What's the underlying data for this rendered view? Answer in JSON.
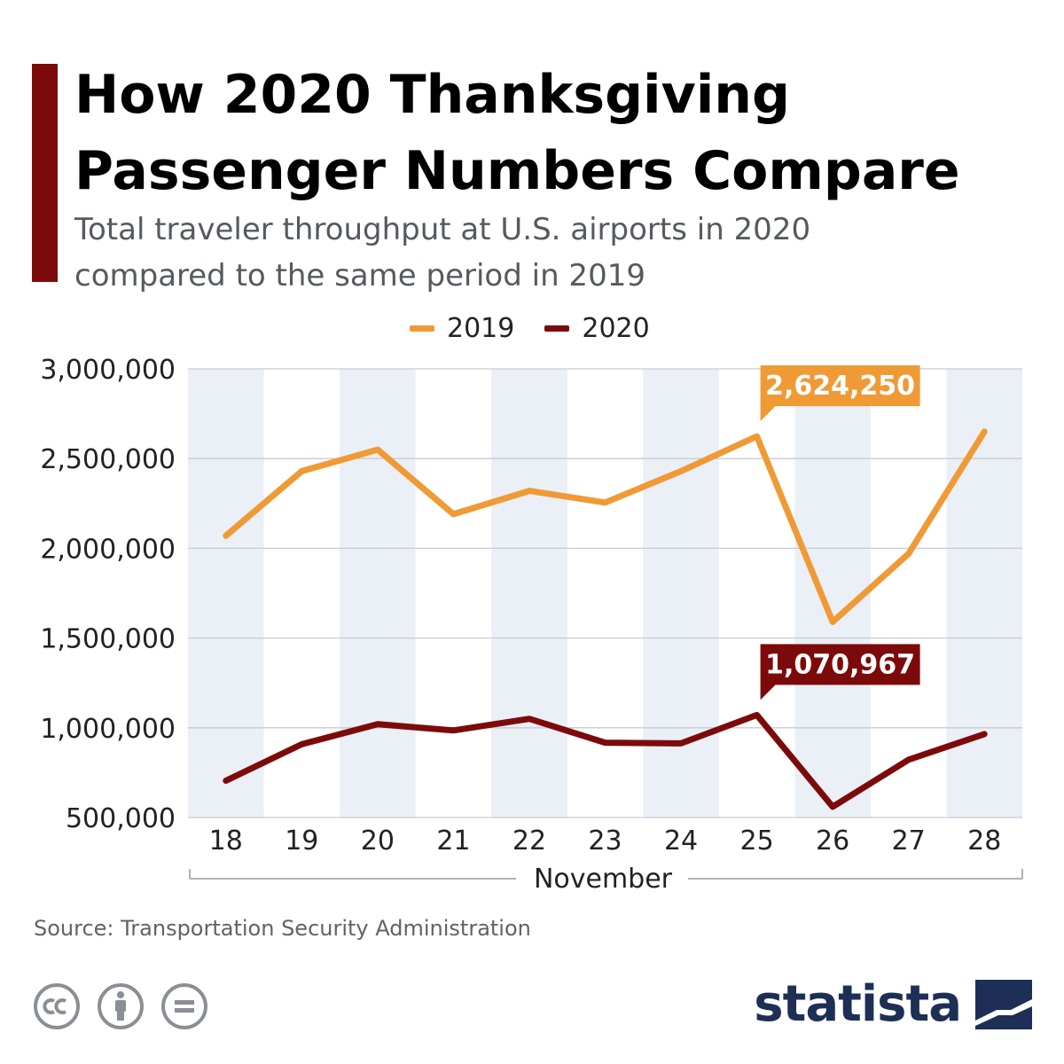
{
  "header": {
    "title": "How 2020 Thanksgiving Passenger Numbers Compare",
    "subtitle": "Total traveler throughput at U.S. airports in 2020 compared to the same period in 2019"
  },
  "colors": {
    "accent": "#7d0a0a",
    "series_2019": "#f09a36",
    "series_2020": "#7d0a0a",
    "band": "#ebeff6",
    "grid": "#c9ccd1",
    "brand": "#1d2f55"
  },
  "chart_data": {
    "type": "line",
    "title": "How 2020 Thanksgiving Passenger Numbers Compare",
    "subtitle": "Total traveler throughput at U.S. airports in 2020 compared to the same period in 2019",
    "xlabel": "November",
    "ylabel": "",
    "categories": [
      "18",
      "19",
      "20",
      "21",
      "22",
      "23",
      "24",
      "25",
      "26",
      "27",
      "28"
    ],
    "yticks": [
      "3,000,000",
      "2,500,000",
      "2,000,000",
      "1,500,000",
      "1,000,000",
      "500,000"
    ],
    "ytick_values": [
      3000000,
      2500000,
      2000000,
      1500000,
      1000000,
      500000
    ],
    "ylim": [
      500000,
      3000000
    ],
    "grid": true,
    "legend": "top-center",
    "series": [
      {
        "name": "2019",
        "color": "#f09a36",
        "values": [
          2070000,
          2430000,
          2550000,
          2190000,
          2320000,
          2255000,
          2430000,
          2624250,
          1590000,
          1970000,
          2650000
        ],
        "annotation": {
          "index": 7,
          "label": "2,624,250"
        }
      },
      {
        "name": "2020",
        "color": "#7d0a0a",
        "values": [
          705000,
          908000,
          1020000,
          985000,
          1050000,
          917000,
          913000,
          1070967,
          560000,
          822000,
          965000
        ],
        "annotation": {
          "index": 7,
          "label": "1,070,967"
        }
      }
    ]
  },
  "footer": {
    "source": "Source: Transportation Security Administration",
    "license_icons": [
      "cc-icon",
      "attribution-icon",
      "no-derivatives-icon"
    ],
    "brand": "statista"
  }
}
